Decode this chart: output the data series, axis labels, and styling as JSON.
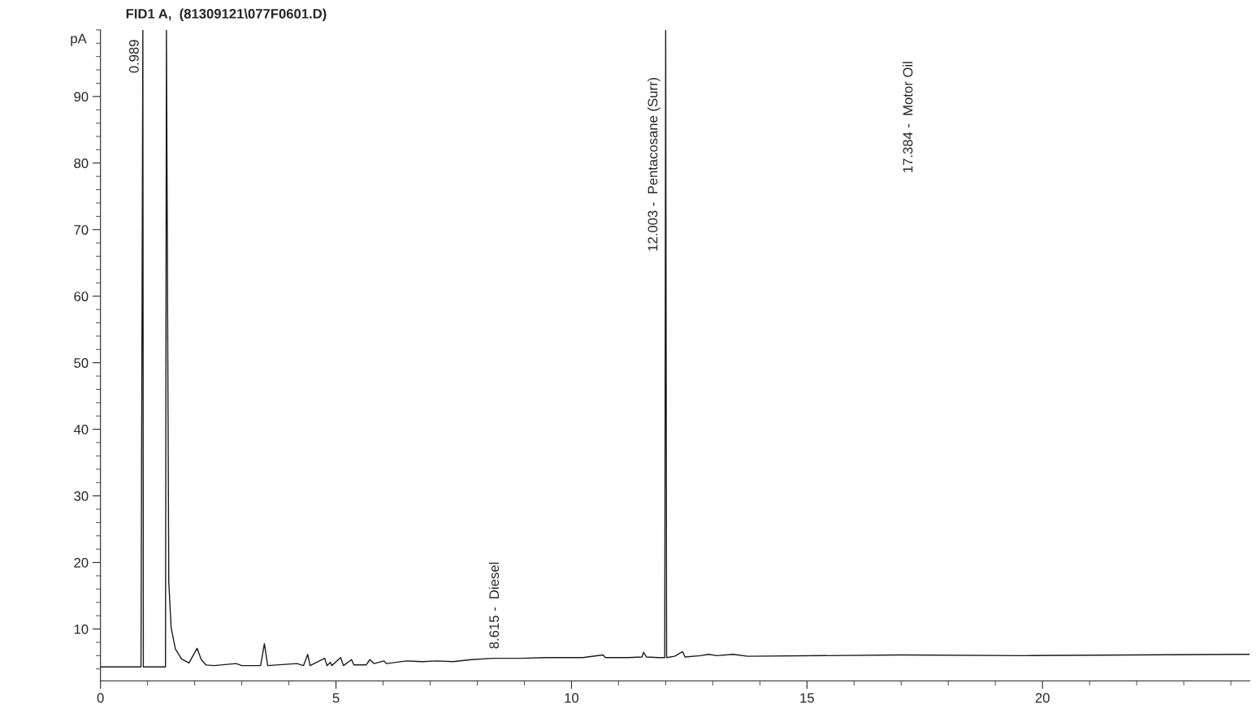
{
  "chart_data": {
    "type": "line",
    "title": "FID1 A,  (81309121\\077F0601.D)",
    "ylabel": "pA",
    "xlim": [
      0,
      24.4
    ],
    "ylim": [
      2.2,
      100
    ],
    "xticks": [
      0,
      5,
      10,
      15,
      20
    ],
    "yticks": [
      10,
      20,
      30,
      40,
      50,
      60,
      70,
      80,
      90
    ],
    "grid": false,
    "legend": false,
    "marker": "none",
    "line_style": "solid",
    "series": [
      {
        "color": "#1a1a1a",
        "x": [
          0,
          0.86,
          0.9,
          0.91,
          1.38,
          1.4,
          1.45,
          1.5,
          1.59,
          1.72,
          1.88,
          2.05,
          2.14,
          2.24,
          2.41,
          2.88,
          3.0,
          3.4,
          3.48,
          3.55,
          4.17,
          4.31,
          4.4,
          4.45,
          4.76,
          4.81,
          4.88,
          4.91,
          5.1,
          5.16,
          5.33,
          5.38,
          5.64,
          5.72,
          5.81,
          6.02,
          6.07,
          6.5,
          6.84,
          7.14,
          7.48,
          7.88,
          8.34,
          8.91,
          9.48,
          10.24,
          10.67,
          10.72,
          11.21,
          11.5,
          11.53,
          11.59,
          11.84,
          11.98,
          12.0,
          12.02,
          12.19,
          12.36,
          12.41,
          12.74,
          12.91,
          13.09,
          13.43,
          13.74,
          17.0,
          19.6,
          24.4
        ],
        "values": [
          4.3,
          4.3,
          100,
          4.3,
          4.3,
          100,
          17.1,
          10.2,
          7.0,
          5.5,
          4.9,
          7.1,
          5.4,
          4.6,
          4.5,
          4.8,
          4.5,
          4.5,
          7.8,
          4.5,
          4.8,
          4.5,
          6.2,
          4.5,
          5.6,
          4.5,
          5.0,
          4.5,
          5.7,
          4.5,
          5.4,
          4.6,
          4.6,
          5.4,
          4.8,
          5.2,
          4.8,
          5.2,
          5.1,
          5.2,
          5.1,
          5.4,
          5.6,
          5.6,
          5.7,
          5.7,
          6.1,
          5.7,
          5.7,
          5.8,
          6.5,
          5.8,
          5.7,
          5.7,
          100,
          5.7,
          5.9,
          6.6,
          5.8,
          6.0,
          6.2,
          6.0,
          6.2,
          5.9,
          6.1,
          6.0,
          6.2
        ]
      }
    ],
    "annotations": [
      {
        "text": "0.989",
        "x": 0.989,
        "y": 93.5
      },
      "8.615 -  Diesel",
      {
        "text": "12.003 -  Pentacosane (Surr)",
        "x": 12.003,
        "y": 66.7
      },
      "17.384 -  Motor Oil"
    ]
  }
}
